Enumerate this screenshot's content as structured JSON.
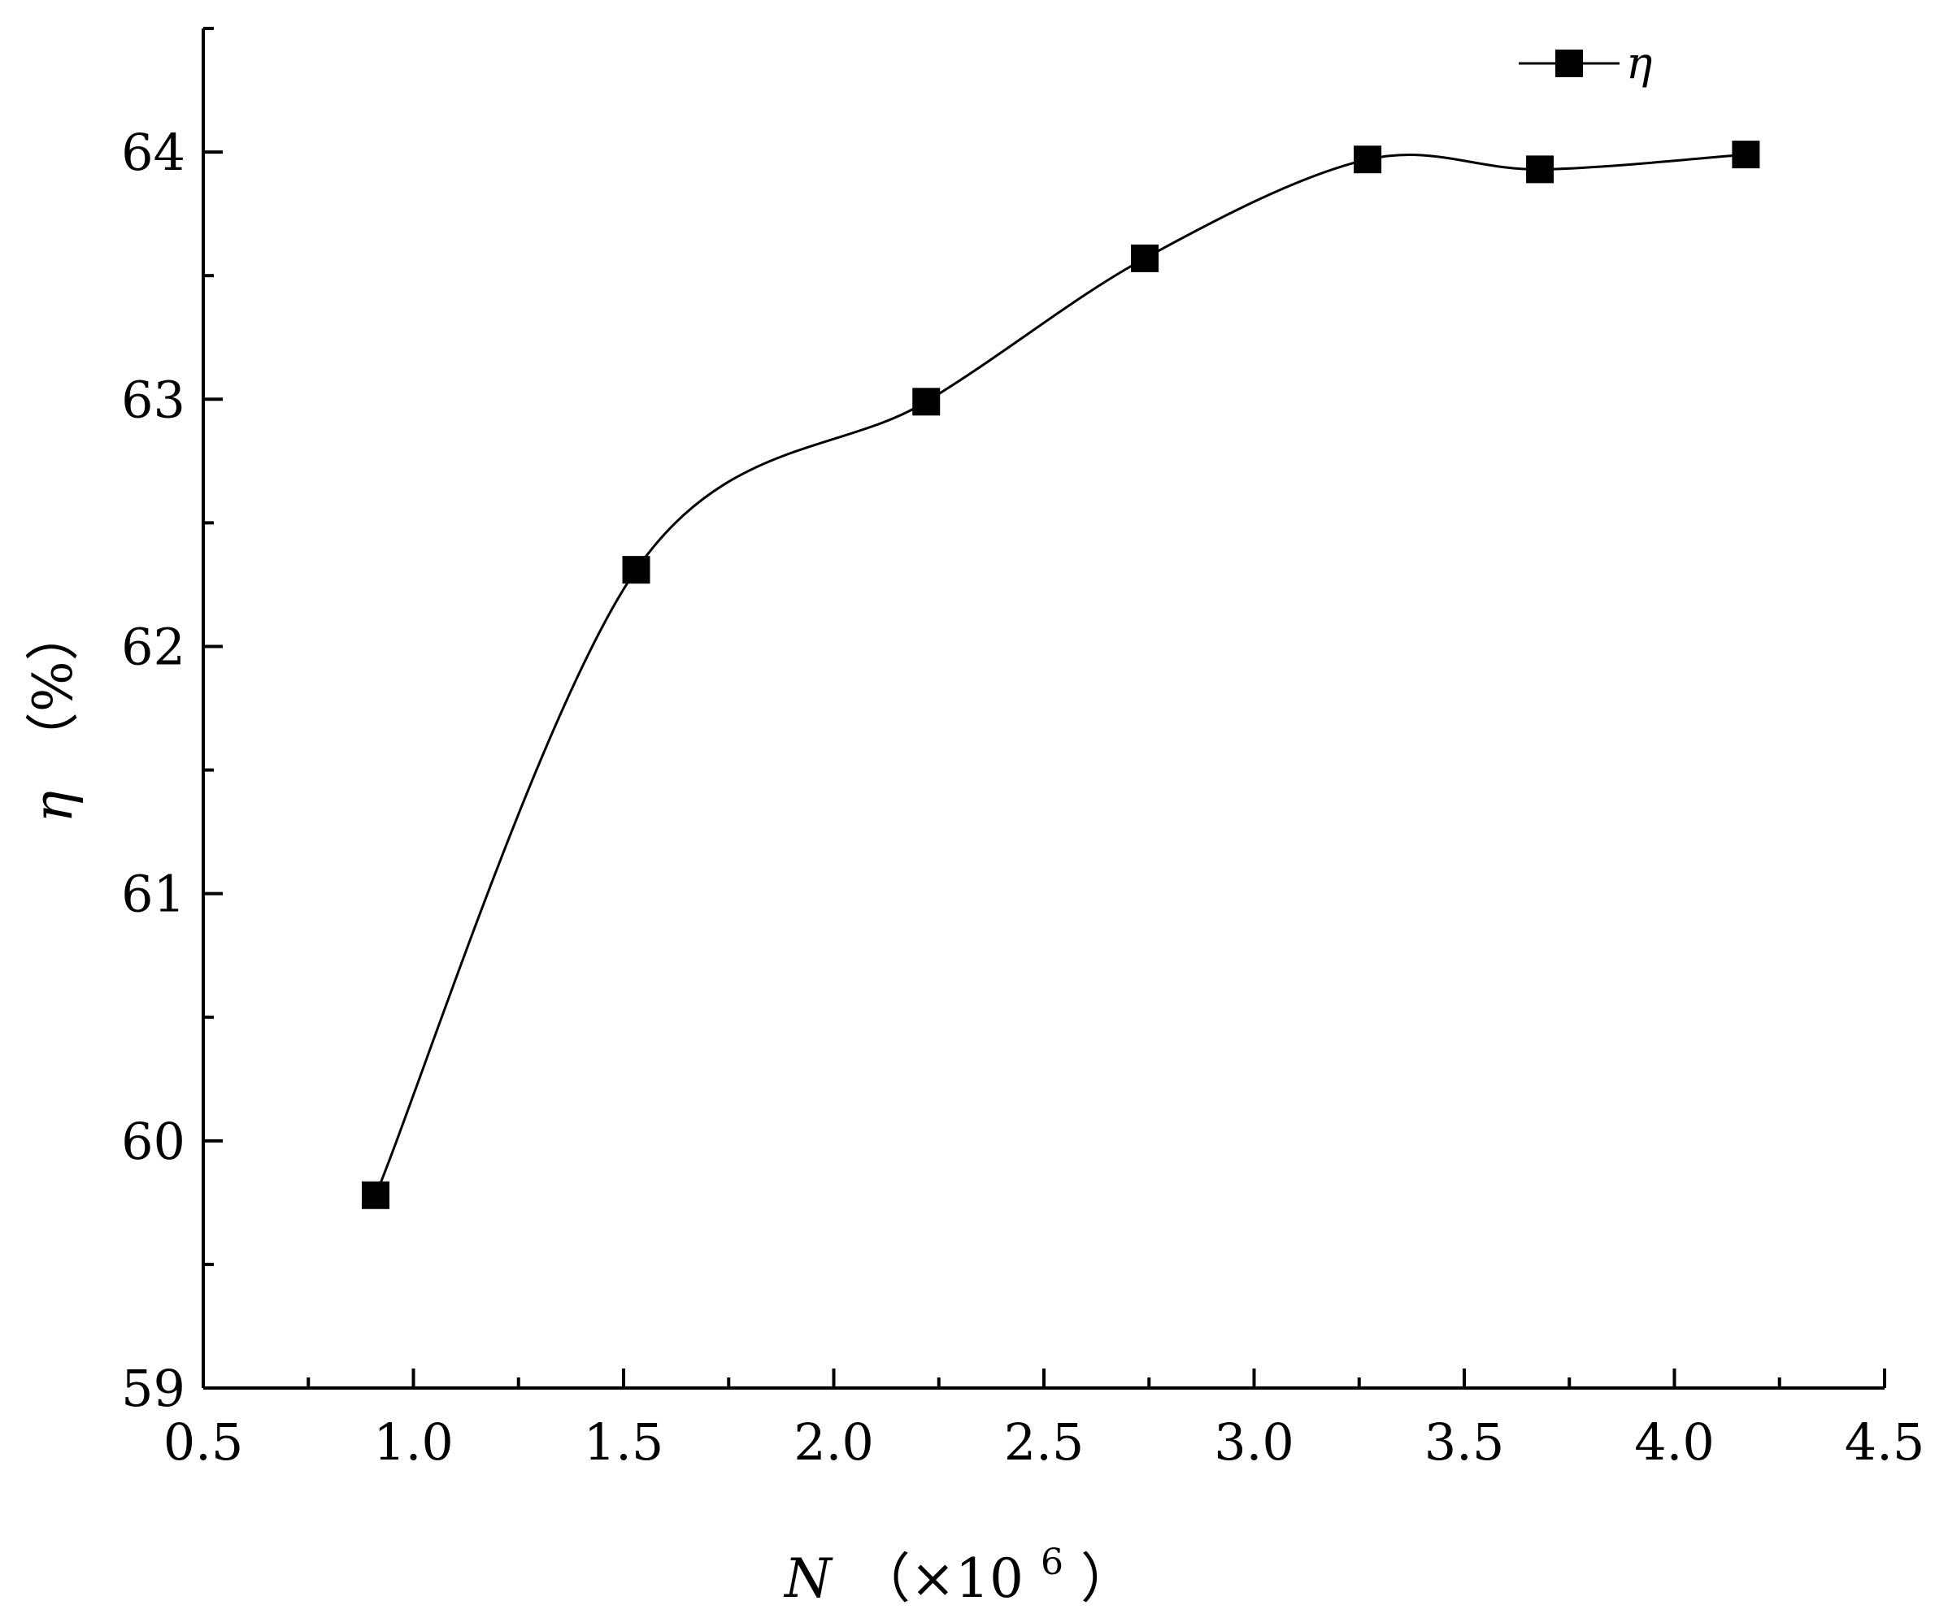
{
  "chart_data": {
    "type": "line",
    "title": "",
    "xlabel": {
      "variable": "N",
      "open": "（×10",
      "exponent": "6",
      "close": "）"
    },
    "ylabel": {
      "variable": "η",
      "unit": "（%）"
    },
    "xlim": [
      0.5,
      4.5
    ],
    "ylim": [
      59,
      64.5
    ],
    "x_ticks": [
      "0.5",
      "1.0",
      "1.5",
      "2.0",
      "2.5",
      "3.0",
      "3.5",
      "4.0",
      "4.5"
    ],
    "x_tick_values": [
      0.5,
      1.0,
      1.5,
      2.0,
      2.5,
      3.0,
      3.5,
      4.0,
      4.5
    ],
    "y_ticks": [
      "59",
      "60",
      "61",
      "62",
      "63",
      "64"
    ],
    "y_tick_values": [
      59,
      60,
      61,
      62,
      63,
      64
    ],
    "grid": false,
    "legend_position": "top-right",
    "series": [
      {
        "name": "η",
        "marker": "square",
        "line": "smooth",
        "color": "#000000",
        "x": [
          0.91,
          1.53,
          2.22,
          2.74,
          3.27,
          3.68,
          4.17
        ],
        "y": [
          59.78,
          62.31,
          62.99,
          63.57,
          63.97,
          63.93,
          63.99
        ]
      }
    ]
  }
}
